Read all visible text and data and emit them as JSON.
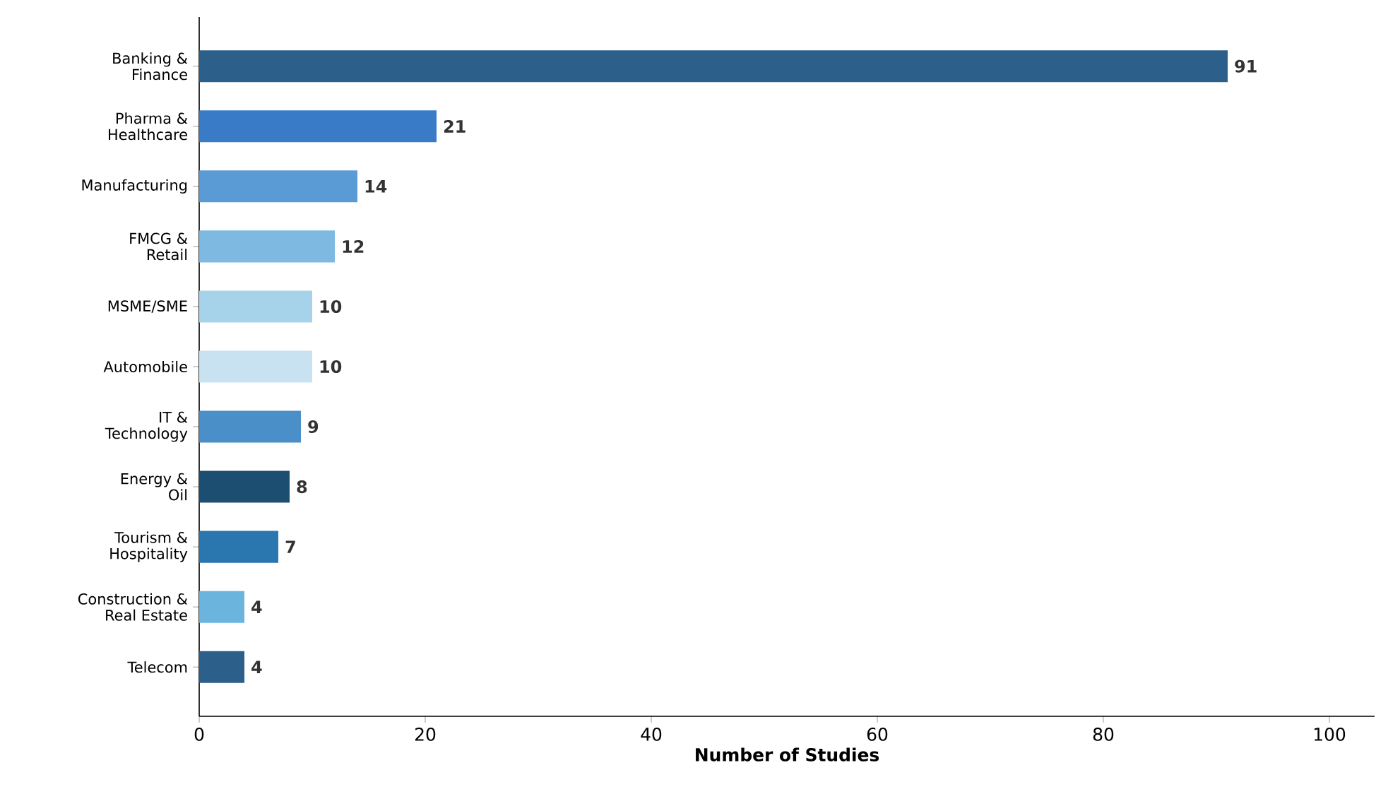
{
  "chart_data": {
    "type": "bar",
    "orientation": "horizontal",
    "xlabel": "Number of Studies",
    "categories": [
      "Banking &\nFinance",
      "Pharma &\nHealthcare",
      "Manufacturing",
      "FMCG &\nRetail",
      "MSME/SME",
      "Automobile",
      "IT &\nTechnology",
      "Energy &\nOil",
      "Tourism &\nHospitality",
      "Construction &\nReal Estate",
      "Telecom"
    ],
    "values": [
      91,
      21,
      14,
      12,
      10,
      10,
      9,
      8,
      7,
      4,
      4
    ],
    "colors": [
      "#2c5f8a",
      "#3a7bc8",
      "#5b9bd5",
      "#7db9e0",
      "#a6d3ea",
      "#c8e2f1",
      "#4a8fc7",
      "#1c4e72",
      "#2a76ae",
      "#6ab4de",
      "#2c5f8a"
    ],
    "xlim": [
      0,
      104
    ],
    "xticks": [
      0,
      20,
      40,
      60,
      80,
      100
    ],
    "data_labels": true
  }
}
